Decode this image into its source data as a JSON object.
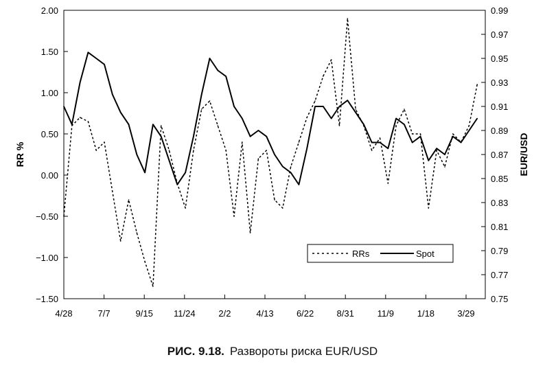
{
  "caption": {
    "figure": "РИС. 9.18.",
    "text": "Развороты риска EUR/USD"
  },
  "chart_data": {
    "type": "line",
    "title": "",
    "x_tick_labels": [
      "4/28",
      "7/7",
      "9/15",
      "11/24",
      "2/2",
      "4/13",
      "6/22",
      "8/31",
      "11/9",
      "1/18",
      "3/29"
    ],
    "y_left": {
      "label": "RR %",
      "range": [
        -1.5,
        2.0
      ],
      "ticks": [
        "2.00",
        "1.50",
        "1.00",
        "0.50",
        "0.00",
        "−0.50",
        "−1.00",
        "−1.50"
      ]
    },
    "y_right": {
      "label": "EUR/USD",
      "range": [
        0.75,
        0.99
      ],
      "ticks": [
        "0.99",
        "0.97",
        "0.95",
        "0.93",
        "0.91",
        "0.89",
        "0.87",
        "0.85",
        "0.83",
        "0.81",
        "0.79",
        "0.77",
        "0.75"
      ]
    },
    "legend": {
      "position": "lower-right",
      "entries": [
        "RRs",
        "Spot"
      ]
    },
    "grid": false,
    "x": [
      0,
      0.2,
      0.4,
      0.6,
      0.8,
      1.0,
      1.2,
      1.4,
      1.6,
      1.8,
      2.0,
      2.2,
      2.4,
      2.6,
      2.8,
      3.0,
      3.2,
      3.4,
      3.6,
      3.8,
      4.0,
      4.2,
      4.4,
      4.6,
      4.8,
      5.0,
      5.2,
      5.4,
      5.6,
      5.8,
      6.0,
      6.2,
      6.4,
      6.6,
      6.8,
      7.0,
      7.2,
      7.4,
      7.6,
      7.8,
      8.0,
      8.2,
      8.4,
      8.6,
      8.8,
      9.0,
      9.2,
      9.4,
      9.6,
      9.8,
      10.0,
      10.2
    ],
    "series": [
      {
        "name": "RRs",
        "axis": "left",
        "style": "dashed",
        "values": [
          -0.5,
          0.6,
          0.7,
          0.65,
          0.3,
          0.4,
          -0.2,
          -0.8,
          -0.3,
          -0.7,
          -1.05,
          -1.35,
          0.6,
          0.3,
          -0.1,
          -0.4,
          0.3,
          0.8,
          0.9,
          0.6,
          0.3,
          -0.5,
          0.4,
          -0.7,
          0.2,
          0.3,
          -0.3,
          -0.4,
          0.1,
          0.4,
          0.7,
          0.9,
          1.2,
          1.4,
          0.6,
          1.9,
          0.8,
          0.6,
          0.3,
          0.45,
          -0.1,
          0.6,
          0.8,
          0.5,
          0.5,
          -0.4,
          0.3,
          0.1,
          0.5,
          0.4,
          0.6,
          1.1
        ]
      },
      {
        "name": "Spot",
        "axis": "right",
        "style": "solid",
        "values": [
          0.91,
          0.895,
          0.93,
          0.955,
          0.95,
          0.945,
          0.92,
          0.905,
          0.895,
          0.87,
          0.855,
          0.895,
          0.885,
          0.865,
          0.845,
          0.855,
          0.885,
          0.92,
          0.95,
          0.94,
          0.935,
          0.91,
          0.9,
          0.885,
          0.89,
          0.885,
          0.87,
          0.86,
          0.855,
          0.845,
          0.875,
          0.91,
          0.91,
          0.9,
          0.91,
          0.915,
          0.905,
          0.895,
          0.88,
          0.88,
          0.875,
          0.9,
          0.895,
          0.88,
          0.885,
          0.865,
          0.875,
          0.87,
          0.885,
          0.88,
          0.89,
          0.9
        ]
      }
    ]
  }
}
